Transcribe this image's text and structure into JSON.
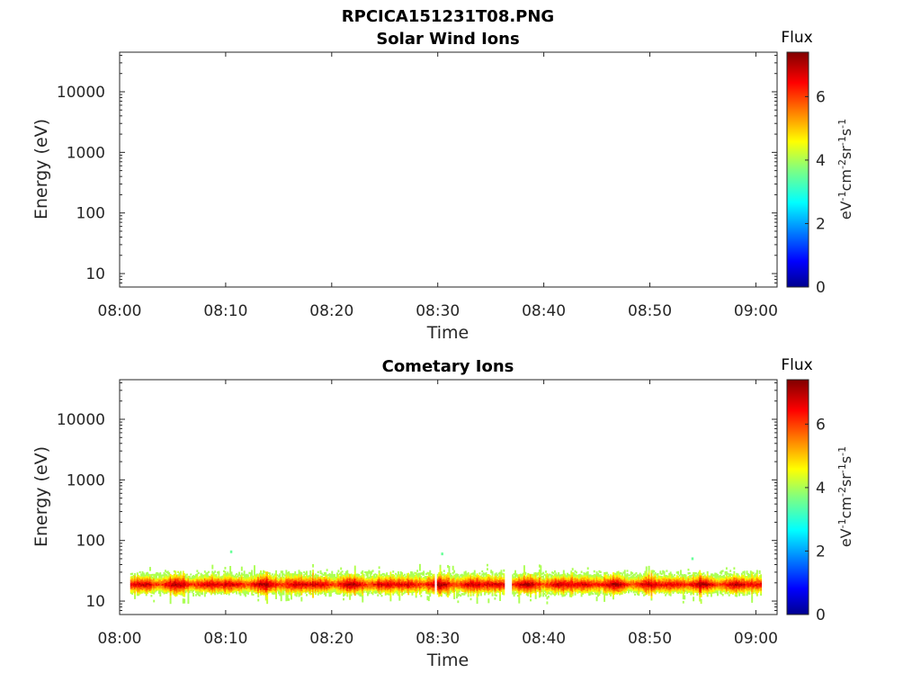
{
  "figure": {
    "title": "RPCICA151231T08.PNG"
  },
  "chart_data": [
    {
      "type": "heatmap",
      "title": "Solar Wind Ions",
      "xlabel": "Time",
      "ylabel": "Energy (eV)",
      "x_ticks": [
        "08:00",
        "08:10",
        "08:20",
        "08:30",
        "08:40",
        "08:50",
        "09:00"
      ],
      "xlim": [
        "08:00",
        "09:02"
      ],
      "y_ticks": [
        10,
        100,
        1000,
        10000
      ],
      "y_tick_labels": [
        "10",
        "100",
        "1000",
        "10000"
      ],
      "ylim": [
        6,
        45000
      ],
      "y_scale": "log",
      "colorbar": {
        "title": "Flux",
        "label": "eV-1cm-2sr-1s-1",
        "ticks": [
          0,
          2,
          4,
          6
        ],
        "tick_labels": [
          "0",
          "2",
          "4",
          "6"
        ],
        "range": [
          0,
          7.4
        ],
        "colormap": "jet"
      },
      "band": null
    },
    {
      "type": "heatmap",
      "title": "Cometary Ions",
      "xlabel": "Time",
      "ylabel": "Energy (eV)",
      "x_ticks": [
        "08:00",
        "08:10",
        "08:20",
        "08:30",
        "08:40",
        "08:50",
        "09:00"
      ],
      "xlim": [
        "08:00",
        "09:02"
      ],
      "y_ticks": [
        10,
        100,
        1000,
        10000
      ],
      "y_tick_labels": [
        "10",
        "100",
        "1000",
        "10000"
      ],
      "ylim": [
        6,
        45000
      ],
      "y_scale": "log",
      "colorbar": {
        "title": "Flux",
        "label": "eV-1cm-2sr-1s-1",
        "ticks": [
          0,
          2,
          4,
          6
        ],
        "tick_labels": [
          "0",
          "2",
          "4",
          "6"
        ],
        "range": [
          0,
          7.4
        ],
        "colormap": "jet"
      },
      "band": {
        "time_start": "08:01",
        "time_end": "09:00.5",
        "energy_low": 13,
        "energy_high": 30,
        "energy_peak": 19,
        "flux_level_range": [
          4,
          7.3
        ],
        "note_sparse_points": [
          {
            "time": "08:10.5",
            "energy": 65,
            "flux": 3.5
          },
          {
            "time": "08:30.4",
            "energy": 60,
            "flux": 3.5
          },
          {
            "time": "08:54",
            "energy": 50,
            "flux": 3.5
          }
        ]
      }
    }
  ]
}
